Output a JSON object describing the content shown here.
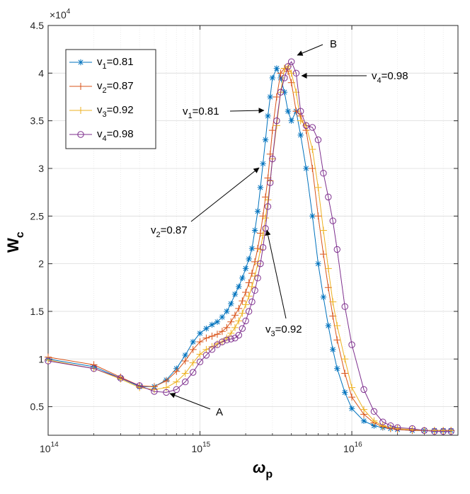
{
  "chart_data": {
    "type": "line",
    "xscale": "log",
    "xlim": [
      100000000000000.0,
      5e+16
    ],
    "ylim": [
      2000,
      45000
    ],
    "x_ticks": [
      {
        "value": 100000000000000.0,
        "base": "10",
        "exp": "14"
      },
      {
        "value": 1000000000000000.0,
        "base": "10",
        "exp": "15"
      },
      {
        "value": 1e+16,
        "base": "10",
        "exp": "16"
      }
    ],
    "y_ticks": [
      {
        "value": 5000,
        "label": "0.5"
      },
      {
        "value": 10000,
        "label": "1"
      },
      {
        "value": 15000,
        "label": "1.5"
      },
      {
        "value": 20000,
        "label": "2"
      },
      {
        "value": 25000,
        "label": "2.5"
      },
      {
        "value": 30000,
        "label": "3"
      },
      {
        "value": 35000,
        "label": "3.5"
      },
      {
        "value": 40000,
        "label": "4"
      },
      {
        "value": 45000,
        "label": "4.5"
      }
    ],
    "multiplier": {
      "base": "×10",
      "exp": "4"
    },
    "xlabel": {
      "main": "ω",
      "sub": "p"
    },
    "ylabel": {
      "main": "W",
      "sub": "c"
    },
    "grid": true,
    "legend": {
      "position": "top-left"
    },
    "series": [
      {
        "name": "v_1=0.81",
        "sym": "v",
        "sub": "1",
        "val": "=0.81",
        "color": "#0072BD",
        "marker": "asterisk",
        "x": [
          100000000000000.0,
          200000000000000.0,
          300000000000000.0,
          400000000000000.0,
          500000000000000.0,
          600000000000000.0,
          700000000000000.0,
          800000000000000.0,
          900000000000000.0,
          1000000000000000.0,
          1100000000000000.0,
          1200000000000000.0,
          1300000000000000.0,
          1400000000000000.0,
          1500000000000000.0,
          1600000000000000.0,
          1700000000000000.0,
          1800000000000000.0,
          1900000000000000.0,
          2000000000000000.0,
          2100000000000000.0,
          2200000000000000.0,
          2300000000000000.0,
          2400000000000000.0,
          2500000000000000.0,
          2600000000000000.0,
          2700000000000000.0,
          2800000000000000.0,
          2900000000000000.0,
          3000000000000000.0,
          3200000000000000.0,
          3400000000000000.0,
          3600000000000000.0,
          3800000000000000.0,
          4000000000000000.0,
          4300000000000000.0,
          4600000000000000.0,
          5000000000000000.0,
          5500000000000000.0,
          6000000000000000.0,
          6500000000000000.0,
          7000000000000000.0,
          7500000000000000.0,
          8000000000000000.0,
          9000000000000000.0,
          1e+16,
          1.2e+16,
          1.4e+16,
          1.6e+16,
          1.8e+16,
          2e+16,
          2.5e+16,
          3e+16,
          3.5e+16,
          4e+16,
          4.5e+16
        ],
        "y": [
          10000,
          9200,
          8000,
          7100,
          7100,
          7800,
          9000,
          10400,
          11800,
          12700,
          13200,
          13600,
          13900,
          14400,
          15000,
          15800,
          16800,
          17600,
          18500,
          19500,
          20500,
          21600,
          23500,
          25500,
          28000,
          30500,
          33000,
          35500,
          37500,
          39500,
          40500,
          39500,
          38000,
          36000,
          35000,
          36000,
          33500,
          30000,
          25000,
          20000,
          16500,
          13500,
          11000,
          9000,
          6500,
          4800,
          3500,
          3000,
          2800,
          2700,
          2600,
          2500,
          2500,
          2500,
          2500,
          2500
        ]
      },
      {
        "name": "v_2=0.87",
        "sym": "v",
        "sub": "2",
        "val": "=0.87",
        "color": "#D95319",
        "marker": "plus",
        "x": [
          100000000000000.0,
          200000000000000.0,
          300000000000000.0,
          400000000000000.0,
          500000000000000.0,
          600000000000000.0,
          700000000000000.0,
          800000000000000.0,
          900000000000000.0,
          1000000000000000.0,
          1100000000000000.0,
          1200000000000000.0,
          1300000000000000.0,
          1400000000000000.0,
          1500000000000000.0,
          1600000000000000.0,
          1700000000000000.0,
          1800000000000000.0,
          1900000000000000.0,
          2000000000000000.0,
          2100000000000000.0,
          2200000000000000.0,
          2300000000000000.0,
          2400000000000000.0,
          2500000000000000.0,
          2600000000000000.0,
          2700000000000000.0,
          2800000000000000.0,
          2900000000000000.0,
          3000000000000000.0,
          3200000000000000.0,
          3400000000000000.0,
          3600000000000000.0,
          3800000000000000.0,
          4000000000000000.0,
          4300000000000000.0,
          4600000000000000.0,
          5000000000000000.0,
          5500000000000000.0,
          6000000000000000.0,
          6500000000000000.0,
          7000000000000000.0,
          7500000000000000.0,
          8000000000000000.0,
          9000000000000000.0,
          1e+16,
          1.2e+16,
          1.4e+16,
          1.6e+16,
          1.8e+16,
          2e+16,
          2.5e+16,
          3e+16,
          3.5e+16,
          4e+16,
          4.5e+16
        ],
        "y": [
          10200,
          9400,
          8100,
          7200,
          7100,
          7700,
          8700,
          9800,
          11000,
          11800,
          12200,
          12400,
          12600,
          12900,
          13300,
          13900,
          14600,
          15300,
          16100,
          17000,
          18000,
          19000,
          20200,
          21600,
          23200,
          25000,
          27000,
          29000,
          31500,
          34000,
          37500,
          40000,
          40500,
          40200,
          39000,
          36000,
          35500,
          34000,
          30000,
          25000,
          21000,
          17500,
          14500,
          12000,
          8500,
          6000,
          4200,
          3300,
          2900,
          2700,
          2600,
          2500,
          2500,
          2500,
          2500,
          2500
        ]
      },
      {
        "name": "v_3=0.92",
        "sym": "v",
        "sub": "3",
        "val": "=0.92",
        "color": "#EDB120",
        "marker": "plus",
        "x": [
          100000000000000.0,
          200000000000000.0,
          300000000000000.0,
          400000000000000.0,
          500000000000000.0,
          600000000000000.0,
          700000000000000.0,
          800000000000000.0,
          900000000000000.0,
          1000000000000000.0,
          1100000000000000.0,
          1200000000000000.0,
          1300000000000000.0,
          1400000000000000.0,
          1500000000000000.0,
          1600000000000000.0,
          1700000000000000.0,
          1800000000000000.0,
          1900000000000000.0,
          2000000000000000.0,
          2100000000000000.0,
          2200000000000000.0,
          2300000000000000.0,
          2400000000000000.0,
          2500000000000000.0,
          2600000000000000.0,
          2700000000000000.0,
          2800000000000000.0,
          2900000000000000.0,
          3000000000000000.0,
          3200000000000000.0,
          3400000000000000.0,
          3600000000000000.0,
          3800000000000000.0,
          4000000000000000.0,
          4300000000000000.0,
          4600000000000000.0,
          5000000000000000.0,
          5500000000000000.0,
          6000000000000000.0,
          6500000000000000.0,
          7000000000000000.0,
          7500000000000000.0,
          8000000000000000.0,
          9000000000000000.0,
          1e+16,
          1.2e+16,
          1.4e+16,
          1.6e+16,
          1.8e+16,
          2e+16,
          2.5e+16,
          3e+16,
          3.5e+16,
          4e+16,
          4.5e+16
        ],
        "y": [
          9900,
          9000,
          7900,
          7000,
          6800,
          7000,
          7600,
          8500,
          9600,
          10500,
          11000,
          11300,
          11600,
          11800,
          12200,
          12700,
          13300,
          14000,
          14800,
          15700,
          16600,
          17600,
          18700,
          20000,
          21500,
          23000,
          24800,
          26700,
          28700,
          31000,
          34500,
          38000,
          40500,
          40700,
          40000,
          38000,
          35000,
          34500,
          32000,
          28000,
          23500,
          19500,
          16000,
          13500,
          10000,
          7000,
          4700,
          3500,
          3000,
          2800,
          2700,
          2600,
          2500,
          2500,
          2500,
          2500
        ]
      },
      {
        "name": "v_4=0.98",
        "sym": "v",
        "sub": "4",
        "val": "=0.98",
        "color": "#7E2F8E",
        "marker": "circle",
        "x": [
          100000000000000.0,
          200000000000000.0,
          300000000000000.0,
          400000000000000.0,
          500000000000000.0,
          600000000000000.0,
          700000000000000.0,
          800000000000000.0,
          900000000000000.0,
          1000000000000000.0,
          1100000000000000.0,
          1200000000000000.0,
          1300000000000000.0,
          1400000000000000.0,
          1500000000000000.0,
          1600000000000000.0,
          1700000000000000.0,
          1800000000000000.0,
          1900000000000000.0,
          2000000000000000.0,
          2100000000000000.0,
          2200000000000000.0,
          2300000000000000.0,
          2400000000000000.0,
          2500000000000000.0,
          2600000000000000.0,
          2700000000000000.0,
          2800000000000000.0,
          2900000000000000.0,
          3000000000000000.0,
          3200000000000000.0,
          3400000000000000.0,
          3600000000000000.0,
          3800000000000000.0,
          4000000000000000.0,
          4300000000000000.0,
          4600000000000000.0,
          5000000000000000.0,
          5500000000000000.0,
          6000000000000000.0,
          6500000000000000.0,
          7000000000000000.0,
          7500000000000000.0,
          8000000000000000.0,
          9000000000000000.0,
          1e+16,
          1.2e+16,
          1.4e+16,
          1.6e+16,
          1.8e+16,
          2e+16,
          2.5e+16,
          3e+16,
          3.5e+16,
          4e+16,
          4.5e+16
        ],
        "y": [
          9800,
          9000,
          8000,
          7200,
          6600,
          6500,
          6800,
          7600,
          8600,
          9700,
          10400,
          11000,
          11500,
          11800,
          12000,
          12100,
          12200,
          12500,
          13200,
          14000,
          15000,
          16000,
          17200,
          18500,
          20000,
          21700,
          23700,
          26000,
          28500,
          31000,
          35000,
          38000,
          39500,
          40700,
          41200,
          40000,
          36000,
          34500,
          34300,
          33000,
          29500,
          27000,
          24500,
          21500,
          15500,
          11500,
          6800,
          4500,
          3400,
          3000,
          2800,
          2700,
          2500,
          2400,
          2400,
          2400
        ]
      }
    ],
    "annotations": [
      {
        "id": "A",
        "sym": "A",
        "sub": "",
        "val": ""
      },
      {
        "id": "B",
        "sym": "B",
        "sub": "",
        "val": ""
      },
      {
        "id": "v1",
        "sym": "v",
        "sub": "1",
        "val": "=0.81"
      },
      {
        "id": "v2",
        "sym": "v",
        "sub": "2",
        "val": "=0.87"
      },
      {
        "id": "v3",
        "sym": "v",
        "sub": "3",
        "val": "=0.92"
      },
      {
        "id": "v4",
        "sym": "v",
        "sub": "4",
        "val": "=0.98"
      }
    ]
  }
}
